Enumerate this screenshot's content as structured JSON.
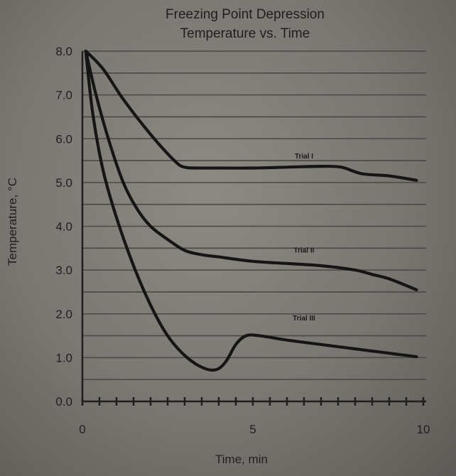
{
  "chart_data": {
    "type": "line",
    "title": [
      "Freezing Point Depression",
      "Temperature vs. Time"
    ],
    "xlabel": "Time, min",
    "ylabel": "Temperature, °C",
    "xlim": [
      0,
      10
    ],
    "ylim": [
      0,
      8
    ],
    "x_ticks": [
      0,
      5,
      10
    ],
    "x_tick_labels": [
      "0",
      "5",
      "10"
    ],
    "y_ticks": [
      0,
      1,
      2,
      3,
      4,
      5,
      6,
      7,
      8
    ],
    "y_tick_labels": [
      "0.0",
      "1.0",
      "2.0",
      "3.0",
      "4.0",
      "5.0",
      "6.0",
      "7.0",
      "8.0"
    ],
    "grid_step": 0.5,
    "series": [
      {
        "name": "Trial I",
        "x": [
          0.1,
          0.6,
          1.2,
          2.0,
          2.7,
          3.0,
          3.5,
          4,
          5,
          6,
          7,
          7.6,
          8.2,
          9,
          9.8
        ],
        "y": [
          8.0,
          7.6,
          6.9,
          6.1,
          5.5,
          5.35,
          5.33,
          5.33,
          5.33,
          5.35,
          5.37,
          5.35,
          5.2,
          5.15,
          5.05
        ]
      },
      {
        "name": "Trial II",
        "x": [
          0.1,
          0.4,
          0.8,
          1.2,
          1.6,
          2.0,
          2.5,
          3.0,
          3.5,
          4,
          5,
          6,
          7,
          8,
          8.5,
          9,
          9.8
        ],
        "y": [
          8.0,
          7.0,
          5.9,
          5.0,
          4.4,
          4.0,
          3.7,
          3.45,
          3.35,
          3.3,
          3.2,
          3.15,
          3.1,
          3.0,
          2.9,
          2.8,
          2.55
        ]
      },
      {
        "name": "Trial III",
        "x": [
          0.1,
          0.3,
          0.6,
          1.0,
          1.5,
          2.0,
          2.5,
          3.0,
          3.5,
          3.9,
          4.2,
          4.5,
          4.8,
          5.2,
          6,
          7,
          8,
          9,
          9.8
        ],
        "y": [
          8.0,
          6.6,
          5.3,
          4.2,
          3.1,
          2.2,
          1.5,
          1.05,
          0.78,
          0.72,
          0.9,
          1.3,
          1.5,
          1.5,
          1.4,
          1.3,
          1.2,
          1.1,
          1.02
        ]
      }
    ],
    "annotations": [
      {
        "text": "Trial I",
        "x": 6.5,
        "y": 5.55
      },
      {
        "text": "Trial II",
        "x": 6.5,
        "y": 3.4
      },
      {
        "text": "Trial III",
        "x": 6.5,
        "y": 1.85
      }
    ]
  }
}
